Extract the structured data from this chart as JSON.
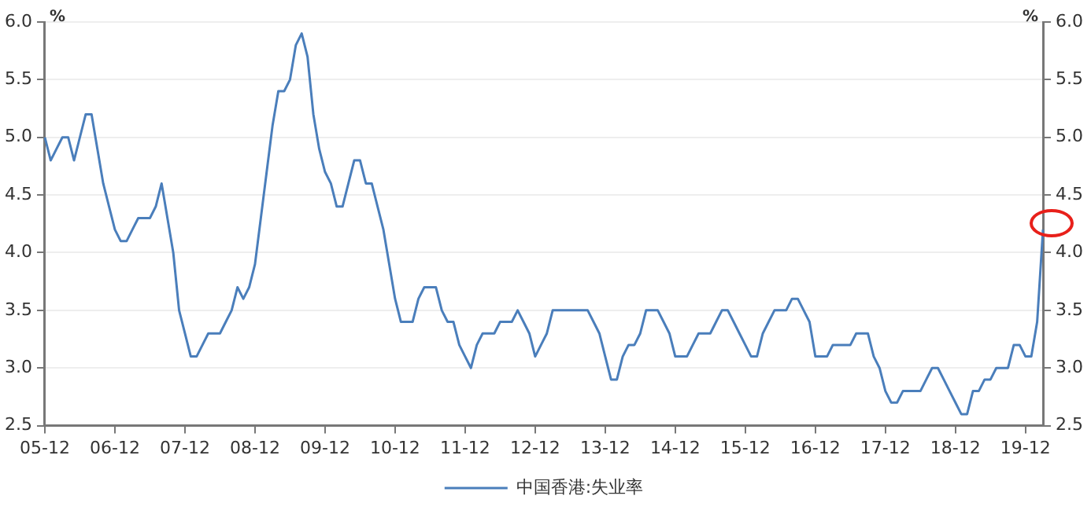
{
  "chart_data": {
    "type": "line",
    "categories": [
      "05-12",
      null,
      null,
      null,
      null,
      null,
      null,
      null,
      null,
      null,
      null,
      null,
      "06-12",
      null,
      null,
      null,
      null,
      null,
      null,
      null,
      null,
      null,
      null,
      null,
      "07-12",
      null,
      null,
      null,
      null,
      null,
      null,
      null,
      null,
      null,
      null,
      null,
      "08-12",
      null,
      null,
      null,
      null,
      null,
      null,
      null,
      null,
      null,
      null,
      null,
      "09-12",
      null,
      null,
      null,
      null,
      null,
      null,
      null,
      null,
      null,
      null,
      null,
      "10-12",
      null,
      null,
      null,
      null,
      null,
      null,
      null,
      null,
      null,
      null,
      null,
      "11-12",
      null,
      null,
      null,
      null,
      null,
      null,
      null,
      null,
      null,
      null,
      null,
      "12-12",
      null,
      null,
      null,
      null,
      null,
      null,
      null,
      null,
      null,
      null,
      null,
      "13-12",
      null,
      null,
      null,
      null,
      null,
      null,
      null,
      null,
      null,
      null,
      null,
      "14-12",
      null,
      null,
      null,
      null,
      null,
      null,
      null,
      null,
      null,
      null,
      null,
      "15-12",
      null,
      null,
      null,
      null,
      null,
      null,
      null,
      null,
      null,
      null,
      null,
      "16-12",
      null,
      null,
      null,
      null,
      null,
      null,
      null,
      null,
      null,
      null,
      null,
      "17-12",
      null,
      null,
      null,
      null,
      null,
      null,
      null,
      null,
      null,
      null,
      null,
      "18-12",
      null,
      null,
      null,
      null,
      null,
      null,
      null,
      null,
      null,
      null,
      null,
      "19-12",
      null,
      null,
      null
    ],
    "series": [
      {
        "name": "中国香港:失业率",
        "color": "#4a7ebb",
        "values": [
          5.0,
          4.8,
          4.9,
          5.0,
          5.0,
          4.8,
          5.0,
          5.2,
          5.2,
          4.9,
          4.6,
          4.4,
          4.2,
          4.1,
          4.1,
          4.2,
          4.3,
          4.3,
          4.3,
          4.4,
          4.6,
          4.3,
          4.0,
          3.5,
          3.3,
          3.1,
          3.1,
          3.2,
          3.3,
          3.3,
          3.3,
          3.4,
          3.5,
          3.7,
          3.6,
          3.7,
          3.9,
          4.3,
          4.7,
          5.1,
          5.4,
          5.4,
          5.5,
          5.8,
          5.9,
          5.7,
          5.2,
          4.9,
          4.7,
          4.6,
          4.4,
          4.4,
          4.6,
          4.8,
          4.8,
          4.6,
          4.6,
          4.4,
          4.2,
          3.9,
          3.6,
          3.4,
          3.4,
          3.4,
          3.6,
          3.7,
          3.7,
          3.7,
          3.5,
          3.4,
          3.4,
          3.2,
          3.1,
          3.0,
          3.2,
          3.3,
          3.3,
          3.3,
          3.4,
          3.4,
          3.4,
          3.5,
          3.4,
          3.3,
          3.1,
          3.2,
          3.3,
          3.5,
          3.5,
          3.5,
          3.5,
          3.5,
          3.5,
          3.5,
          3.4,
          3.3,
          3.1,
          2.9,
          2.9,
          3.1,
          3.2,
          3.2,
          3.3,
          3.5,
          3.5,
          3.5,
          3.4,
          3.3,
          3.1,
          3.1,
          3.1,
          3.2,
          3.3,
          3.3,
          3.3,
          3.4,
          3.5,
          3.5,
          3.4,
          3.3,
          3.2,
          3.1,
          3.1,
          3.3,
          3.4,
          3.5,
          3.5,
          3.5,
          3.6,
          3.6,
          3.5,
          3.4,
          3.1,
          3.1,
          3.1,
          3.2,
          3.2,
          3.2,
          3.2,
          3.3,
          3.3,
          3.3,
          3.1,
          3.0,
          2.8,
          2.7,
          2.7,
          2.8,
          2.8,
          2.8,
          2.8,
          2.9,
          3.0,
          3.0,
          2.9,
          2.8,
          2.7,
          2.6,
          2.6,
          2.8,
          2.8,
          2.9,
          2.9,
          3.0,
          3.0,
          3.0,
          3.2,
          3.2,
          3.1,
          3.1,
          3.4,
          4.2
        ]
      }
    ],
    "ylabel": "%",
    "y2label": "%",
    "ylim": [
      2.5,
      6.0
    ],
    "yticks": [
      {
        "value": 2.5,
        "label": "2.5"
      },
      {
        "value": 3,
        "label": "3.0"
      },
      {
        "value": 3.5,
        "label": "3.5"
      },
      {
        "value": 4,
        "label": "4.0"
      },
      {
        "value": 4.5,
        "label": "4.5"
      },
      {
        "value": 5,
        "label": "5.0"
      },
      {
        "value": 5.5,
        "label": "5.5"
      },
      {
        "value": 6,
        "label": "6.0"
      }
    ],
    "y2lim": [
      2.5,
      6.0
    ],
    "y2ticks": [
      {
        "value": 2.5,
        "label": "2.5"
      },
      {
        "value": 3,
        "label": "3.0"
      },
      {
        "value": 3.5,
        "label": "3.5"
      },
      {
        "value": 4,
        "label": "4.0"
      },
      {
        "value": 4.5,
        "label": "4.5"
      },
      {
        "value": 5,
        "label": "5.0"
      },
      {
        "value": 5.5,
        "label": "5.5"
      },
      {
        "value": 6,
        "label": "6.0"
      }
    ],
    "grid": "y",
    "legend": "bottom",
    "marker": "none",
    "line_style": "solid"
  }
}
